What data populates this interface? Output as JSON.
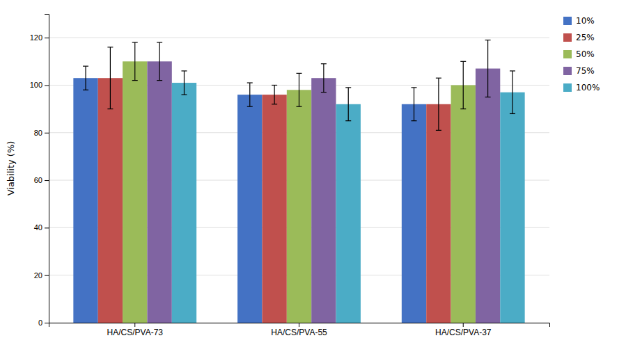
{
  "chart_data": {
    "type": "bar",
    "categories": [
      "HA/CS/PVA-73",
      "HA/CS/PVA-55",
      "HA/CS/PVA-37"
    ],
    "series": [
      {
        "name": "10%",
        "color": "#4472C4",
        "values": [
          103,
          96,
          92
        ],
        "errors": [
          5,
          5,
          7
        ]
      },
      {
        "name": "25%",
        "color": "#C0504D",
        "values": [
          103,
          96,
          92
        ],
        "errors": [
          13,
          4,
          11
        ]
      },
      {
        "name": "50%",
        "color": "#9BBB59",
        "values": [
          110,
          98,
          100
        ],
        "errors": [
          8,
          7,
          10
        ]
      },
      {
        "name": "75%",
        "color": "#8064A2",
        "values": [
          110,
          103,
          107
        ],
        "errors": [
          8,
          6,
          12
        ]
      },
      {
        "name": "100%",
        "color": "#4BACC6",
        "values": [
          101,
          92,
          97
        ],
        "errors": [
          5,
          7,
          9
        ]
      }
    ],
    "ylabel": "Viability (%)",
    "ylim": [
      0,
      130
    ],
    "yticks": [
      0,
      20,
      40,
      60,
      80,
      100,
      120
    ],
    "grid": true,
    "legend": "right"
  }
}
